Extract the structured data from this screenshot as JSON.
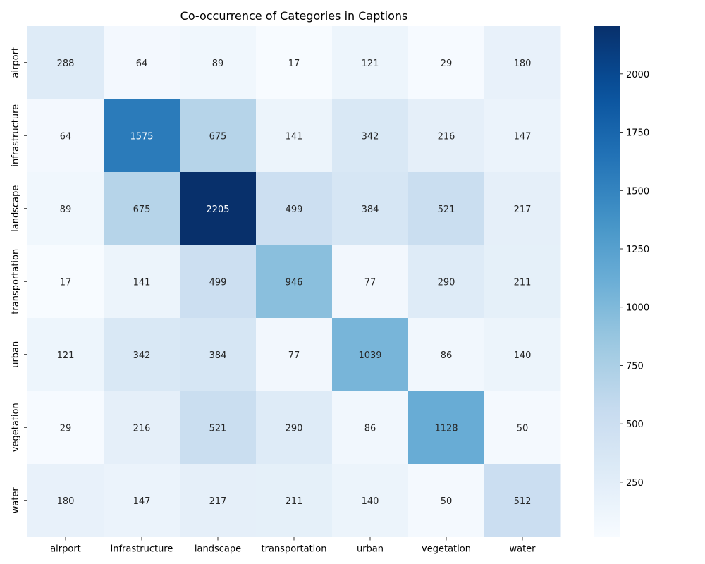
{
  "chart_data": {
    "type": "heatmap",
    "title": "Co-occurrence of Categories in Captions",
    "xlabel": "",
    "ylabel": "",
    "x_categories": [
      "airport",
      "infrastructure",
      "landscape",
      "transportation",
      "urban",
      "vegetation",
      "water"
    ],
    "y_categories": [
      "airport",
      "infrastructure",
      "landscape",
      "transportation",
      "urban",
      "vegetation",
      "water"
    ],
    "values": [
      [
        288,
        64,
        89,
        17,
        121,
        29,
        180
      ],
      [
        64,
        1575,
        675,
        141,
        342,
        216,
        147
      ],
      [
        89,
        675,
        2205,
        499,
        384,
        521,
        217
      ],
      [
        17,
        141,
        499,
        946,
        77,
        290,
        211
      ],
      [
        121,
        342,
        384,
        77,
        1039,
        86,
        140
      ],
      [
        29,
        216,
        521,
        290,
        86,
        1128,
        50
      ],
      [
        180,
        147,
        217,
        211,
        140,
        50,
        512
      ]
    ],
    "colorbar": {
      "colormap": "Blues",
      "vmin": 17,
      "vmax": 2205,
      "ticks": [
        250,
        500,
        750,
        1000,
        1250,
        1500,
        1750,
        2000
      ]
    },
    "annotations": true,
    "grid": false
  }
}
